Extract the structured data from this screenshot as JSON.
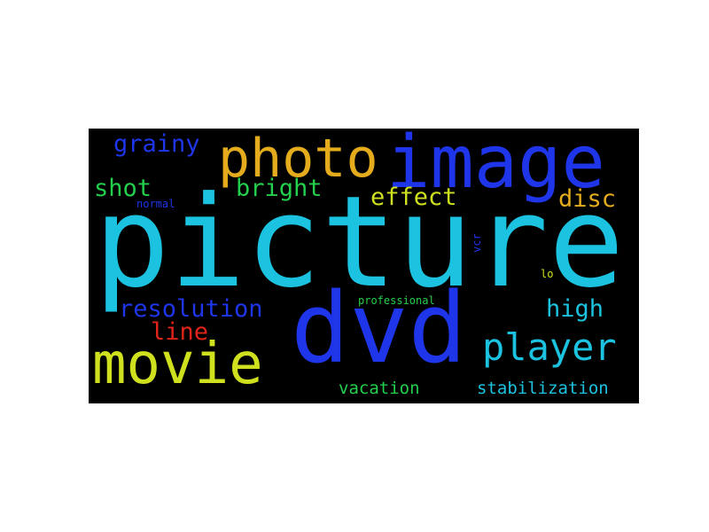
{
  "words": {
    "picture": {
      "text": "picture",
      "color": "#1bc3e0"
    },
    "dvd": {
      "text": "dvd",
      "color": "#1e35ea"
    },
    "image": {
      "text": "image",
      "color": "#1e35ea"
    },
    "photo": {
      "text": "photo",
      "color": "#e4ac1d"
    },
    "movie": {
      "text": "movie",
      "color": "#cfe11e"
    },
    "player": {
      "text": "player",
      "color": "#1bc3e0"
    },
    "grainy": {
      "text": "grainy",
      "color": "#1e35ea"
    },
    "shot": {
      "text": "shot",
      "color": "#23cf4c"
    },
    "bright": {
      "text": "bright",
      "color": "#23cf4c"
    },
    "effect": {
      "text": "effect",
      "color": "#cfe11e"
    },
    "disc": {
      "text": "disc",
      "color": "#e4ac1d"
    },
    "resolution": {
      "text": "resolution",
      "color": "#1e35ea"
    },
    "high": {
      "text": "high",
      "color": "#1bc3e0"
    },
    "line": {
      "text": "line",
      "color": "#e0241a"
    },
    "vacation": {
      "text": "vacation",
      "color": "#23cf4c"
    },
    "stabilization": {
      "text": "stabilization",
      "color": "#1bc3e0"
    },
    "normal": {
      "text": "normal",
      "color": "#1e35ea"
    },
    "professional": {
      "text": "professional",
      "color": "#23cf4c"
    },
    "vcr": {
      "text": "vcr",
      "color": "#1e35ea"
    },
    "lo": {
      "text": "lo",
      "color": "#cfe11e"
    }
  }
}
